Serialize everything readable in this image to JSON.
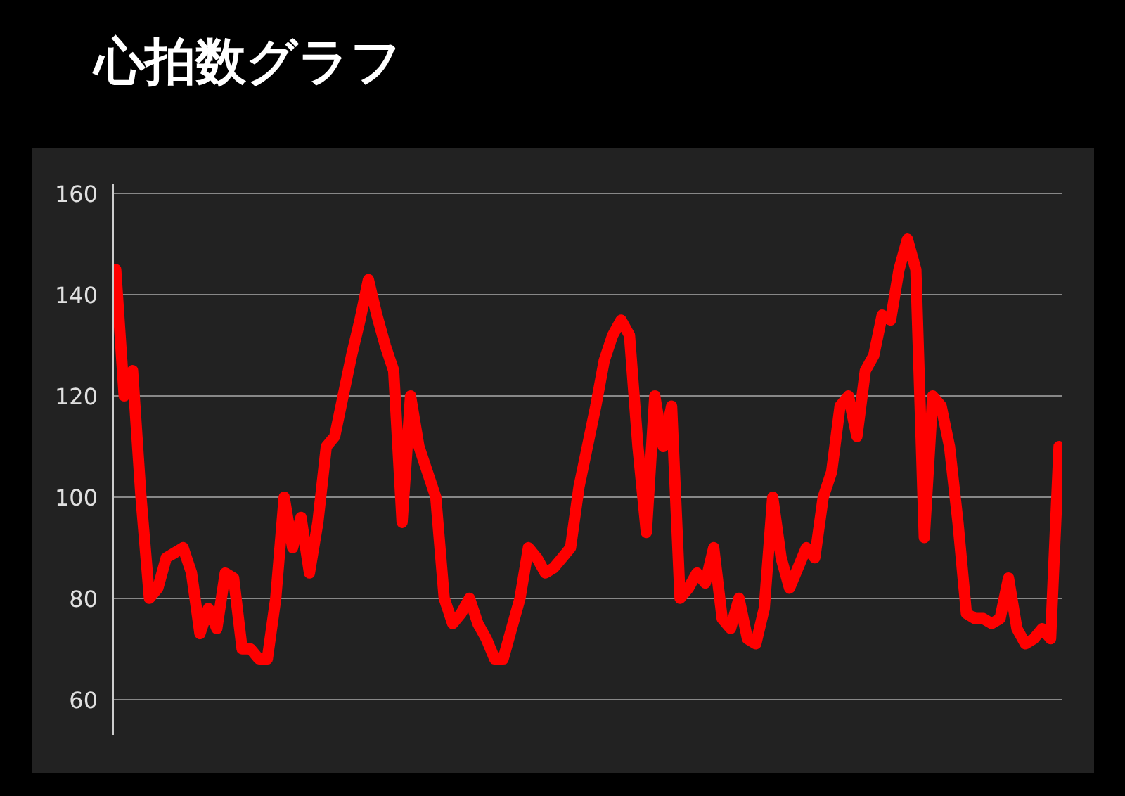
{
  "chart_data": {
    "type": "line",
    "title": "心拍数グラフ",
    "categories": [
      null,
      null,
      null,
      null,
      null,
      null,
      null,
      null,
      null,
      null,
      null,
      null,
      null,
      null,
      null,
      null,
      null,
      null,
      null,
      null,
      null,
      null,
      null,
      null,
      null,
      null,
      null,
      null,
      null,
      null,
      null,
      null,
      null,
      null,
      null,
      null,
      null,
      null,
      null,
      null,
      null,
      null,
      null,
      null,
      null,
      null,
      null,
      null,
      null,
      null,
      null,
      null,
      null,
      null,
      null,
      null,
      null,
      null,
      null,
      null,
      null,
      null,
      null,
      null,
      null,
      null,
      null,
      null,
      null,
      null,
      null,
      null,
      null,
      null,
      null,
      null,
      null,
      null,
      null,
      null,
      null,
      null,
      null,
      null,
      null,
      null,
      null,
      null,
      null,
      null,
      null,
      null,
      null,
      null,
      null,
      null,
      null,
      null,
      null,
      null,
      null,
      null,
      null,
      null,
      null,
      null,
      null,
      null,
      null,
      null,
      null,
      null,
      null
    ],
    "series": [
      {
        "color": "#ff0000",
        "values": [
          145,
          120,
          125,
          100,
          80,
          82,
          88,
          89,
          90,
          85,
          73,
          78,
          74,
          85,
          84,
          70,
          70,
          68,
          68,
          80,
          100,
          90,
          96,
          85,
          95,
          110,
          112,
          120,
          128,
          135,
          143,
          136,
          130,
          125,
          95,
          120,
          110,
          105,
          100,
          80,
          75,
          77,
          80,
          75,
          72,
          68,
          68,
          74,
          80,
          90,
          88,
          85,
          86,
          88,
          90,
          102,
          110,
          118,
          127,
          132,
          135,
          132,
          110,
          93,
          120,
          110,
          118,
          80,
          82,
          85,
          83,
          90,
          76,
          74,
          80,
          72,
          71,
          78,
          100,
          88,
          82,
          86,
          90,
          88,
          100,
          105,
          118,
          120,
          112,
          125,
          128,
          136,
          135,
          145,
          151,
          145,
          92,
          120,
          118,
          110,
          95,
          77,
          76,
          76,
          75,
          76,
          84,
          74,
          71,
          72,
          74,
          72,
          110
        ]
      }
    ],
    "ylim": [
      53,
      162
    ],
    "yticks": [
      60,
      80,
      100,
      120,
      140,
      160
    ],
    "grid": "y",
    "tick_labels": "y"
  }
}
